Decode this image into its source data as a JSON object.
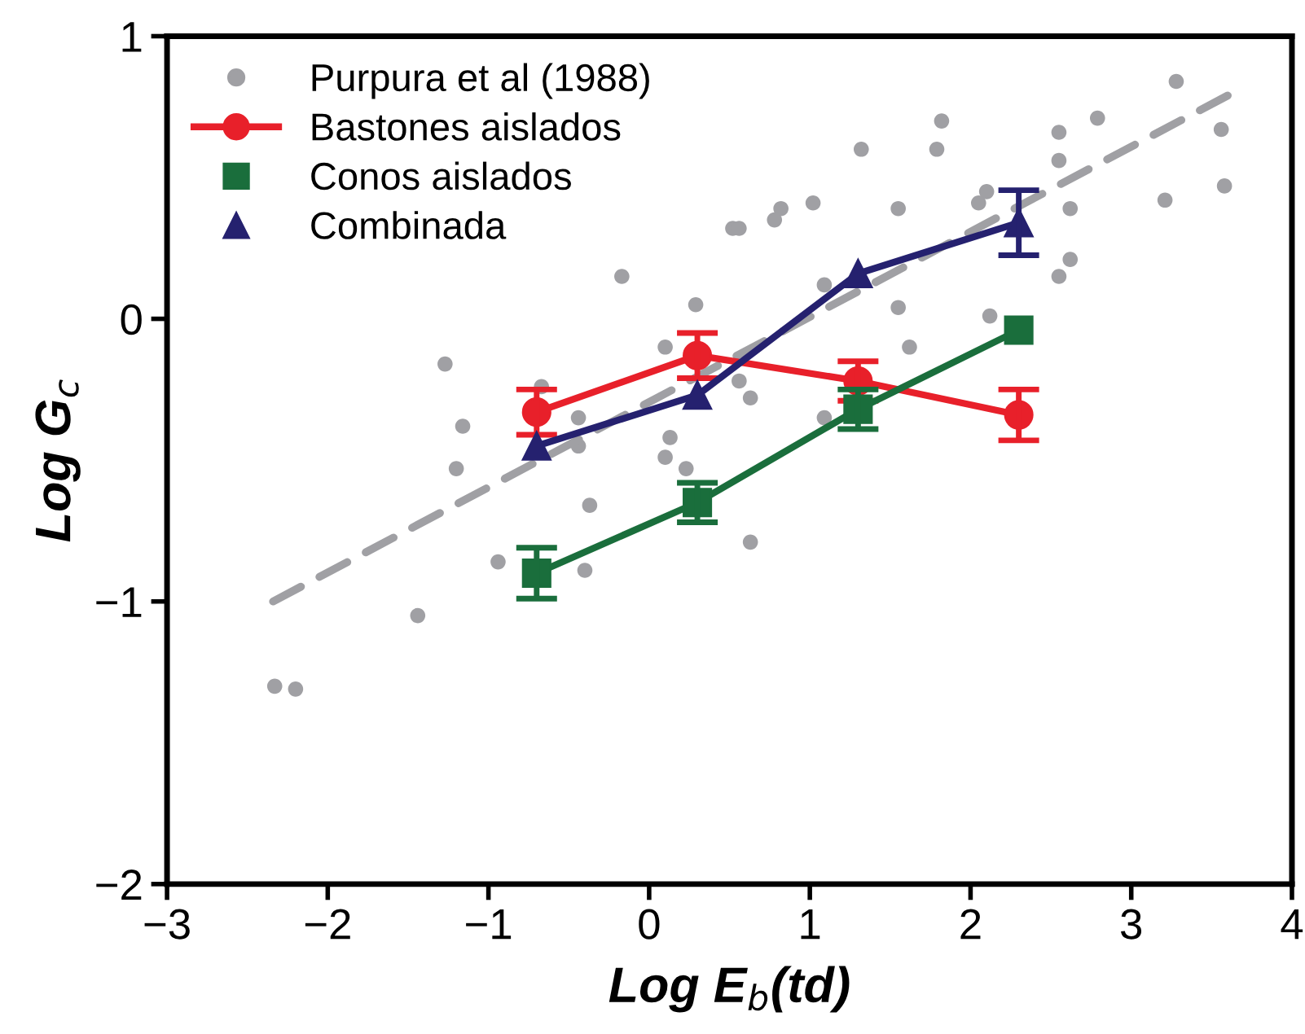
{
  "chart_data": {
    "type": "line",
    "xlabel": "Log E$_{b}$(td)",
    "ylabel": "Log G$_{c}$",
    "xlim": [
      -3,
      4
    ],
    "xticks": [
      {
        "value": -3,
        "label": "−3"
      },
      {
        "value": -2,
        "label": "−2"
      },
      {
        "value": -1,
        "label": "−1"
      },
      0,
      1,
      2,
      3,
      4
    ],
    "ylim": [
      -2,
      1
    ],
    "yticks": [
      {
        "value": -2,
        "label": "−2"
      },
      {
        "value": -1,
        "label": "−1"
      },
      0,
      1
    ],
    "grid": false,
    "legend": "top left",
    "series": [
      {
        "name": "Purpura et al (1988)",
        "type": "scatter",
        "marker": "circle",
        "color": "#a0a0a4",
        "x": [
          -1.27,
          -1.16,
          -1.2,
          -0.94,
          -1.44,
          -2.33,
          -2.2,
          -0.67,
          -0.44,
          -0.44,
          -0.37,
          -0.4,
          -0.17,
          0.29,
          0.1,
          0.13,
          0.1,
          0.23,
          0.52,
          3.28,
          3.56,
          3.58,
          3.21,
          2.79,
          2.55,
          2.55,
          2.62,
          2.62,
          2.55,
          2.12,
          2.1,
          2.05,
          1.82,
          1.79,
          1.32,
          1.55,
          1.02,
          0.82,
          0.78,
          0.56,
          1.09,
          1.55,
          1.62,
          0.56,
          0.63,
          1.09,
          0.63
        ],
        "values": [
          -0.16,
          -0.38,
          -0.53,
          -0.86,
          -1.05,
          -1.3,
          -1.31,
          -0.24,
          -0.35,
          -0.45,
          -0.66,
          -0.89,
          0.15,
          0.05,
          -0.1,
          -0.42,
          -0.49,
          -0.53,
          0.32,
          0.84,
          0.67,
          0.47,
          0.42,
          0.71,
          0.66,
          0.56,
          0.39,
          0.21,
          0.15,
          0.01,
          0.45,
          0.41,
          0.7,
          0.6,
          0.6,
          0.39,
          0.41,
          0.39,
          0.35,
          0.32,
          0.12,
          0.04,
          -0.1,
          -0.22,
          -0.28,
          -0.35,
          -0.79
        ]
      },
      {
        "line_style": "dashed",
        "marker": "none",
        "color": "#a0a0a4",
        "x": [
          -2.34,
          3.6
        ],
        "values": [
          -1.0,
          0.79
        ]
      },
      {
        "name": "Bastones aislados",
        "marker": "circle",
        "color": "#e8202a",
        "x": [
          -0.7,
          0.3,
          1.3,
          2.3
        ],
        "values": [
          -0.33,
          -0.13,
          -0.22,
          -0.34
        ],
        "errors": [
          0.08,
          0.08,
          0.07,
          0.09
        ]
      },
      {
        "name": "Conos aislados",
        "marker": "square",
        "color": "#1a6e3c",
        "x": [
          -0.7,
          0.3,
          1.3,
          2.3
        ],
        "values": [
          -0.9,
          -0.65,
          -0.32,
          -0.04
        ],
        "errors": [
          0.09,
          0.07,
          0.07,
          null
        ]
      },
      {
        "name": "Combinada",
        "marker": "triangle",
        "color": "#25216f",
        "x": [
          -0.7,
          0.3,
          1.3,
          2.3
        ],
        "values": [
          -0.45,
          -0.27,
          0.16,
          0.34
        ],
        "errors": [
          null,
          null,
          null,
          0.115
        ]
      }
    ]
  }
}
